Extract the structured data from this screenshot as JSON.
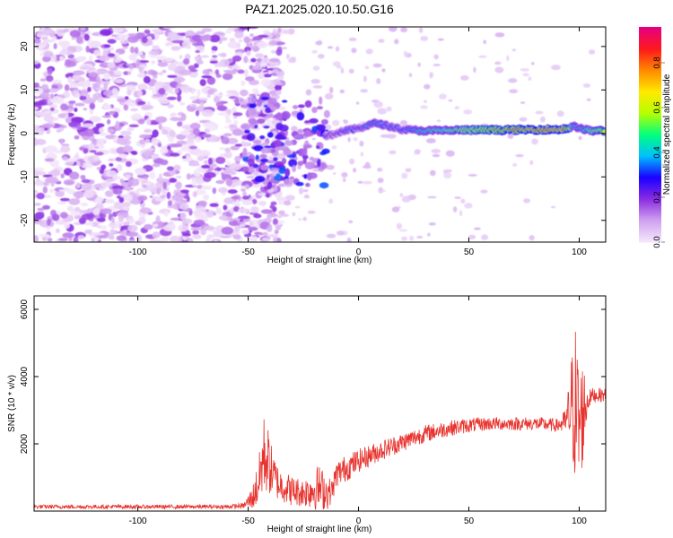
{
  "title": "PAZ1.2025.020.10.50.G16",
  "chart_data": [
    {
      "type": "heatmap",
      "xlabel": "Height of straight line (km)",
      "ylabel": "Frequency (Hz)",
      "xlim": [
        -147,
        112
      ],
      "ylim": [
        -25,
        24.5
      ],
      "x_ticks": [
        -100,
        -50,
        0,
        50,
        100
      ],
      "x_tick_labels": [
        "-100",
        "-50",
        "0",
        "50",
        "100"
      ],
      "y_ticks": [
        -20,
        -10,
        0,
        10,
        20
      ],
      "y_tick_labels": [
        "-20",
        "-10",
        "0",
        "10",
        "20"
      ],
      "colorbar": {
        "label": "Normalized spectral amplitude",
        "range": [
          0,
          0.96
        ],
        "ticks": [
          0,
          0.2,
          0.4,
          0.6,
          0.8
        ],
        "tick_labels": [
          "0.0",
          "0.2",
          "0.4",
          "0.6",
          "0.8"
        ],
        "colormap": [
          "#f4e6fb",
          "#cfa0ef",
          "#8a2be2",
          "#1a00ff",
          "#00bfff",
          "#00ff7f",
          "#b4ff00",
          "#ffea00",
          "#ff8c00",
          "#ff1a1a",
          "#e6007e"
        ]
      },
      "signal_ridge": {
        "x": [
          -15,
          -12,
          -8,
          -4,
          0,
          4,
          8,
          12,
          20,
          30,
          40,
          50,
          60,
          70,
          80,
          90,
          94,
          98,
          102,
          106,
          112
        ],
        "frequency": [
          -0.5,
          -0.3,
          0.4,
          0.8,
          1.2,
          1.8,
          2.4,
          1.9,
          0.9,
          0.6,
          0.7,
          0.8,
          0.8,
          0.8,
          0.9,
          0.9,
          1.1,
          1.6,
          0.9,
          0.6,
          0.6
        ],
        "amplitude": [
          0.32,
          0.25,
          0.3,
          0.35,
          0.32,
          0.38,
          0.42,
          0.36,
          0.35,
          0.5,
          0.55,
          0.65,
          0.72,
          0.78,
          0.82,
          0.85,
          0.82,
          0.4,
          0.45,
          0.6,
          0.7
        ]
      },
      "noise_region_x": [
        -147,
        -40
      ],
      "grid": false
    },
    {
      "type": "line",
      "xlabel": "Height of straight line (km)",
      "ylabel": "SNR (10 * v/v)",
      "xlim": [
        -147,
        112
      ],
      "ylim": [
        0,
        6400
      ],
      "x_ticks": [
        -100,
        -50,
        0,
        50,
        100
      ],
      "x_tick_labels": [
        "-100",
        "-50",
        "0",
        "50",
        "100"
      ],
      "y_ticks": [
        2000,
        4000,
        6000
      ],
      "y_tick_labels": [
        "2000",
        "4000",
        "6000"
      ],
      "color": "#e8322d",
      "envelope": {
        "x": [
          -147,
          -60,
          -52,
          -48,
          -45,
          -43,
          -41,
          -39,
          -36,
          -30,
          -25,
          -18,
          -14,
          -12,
          -10,
          -5,
          0,
          10,
          20,
          30,
          40,
          50,
          60,
          70,
          80,
          90,
          94,
          96,
          98,
          100,
          102,
          104,
          106,
          112
        ],
        "mean": [
          130,
          130,
          160,
          400,
          900,
          1700,
          1500,
          1100,
          800,
          600,
          550,
          700,
          550,
          600,
          1100,
          1300,
          1500,
          1800,
          2050,
          2300,
          2450,
          2550,
          2600,
          2600,
          2600,
          2550,
          2650,
          3000,
          3300,
          2500,
          3000,
          3300,
          3450,
          3450
        ],
        "spread": [
          60,
          60,
          80,
          350,
          800,
          1200,
          1000,
          700,
          500,
          450,
          420,
          700,
          500,
          350,
          400,
          400,
          350,
          300,
          280,
          260,
          240,
          220,
          200,
          200,
          200,
          200,
          400,
          1300,
          2500,
          2000,
          1500,
          300,
          220,
          200
        ]
      },
      "grid": false
    }
  ]
}
